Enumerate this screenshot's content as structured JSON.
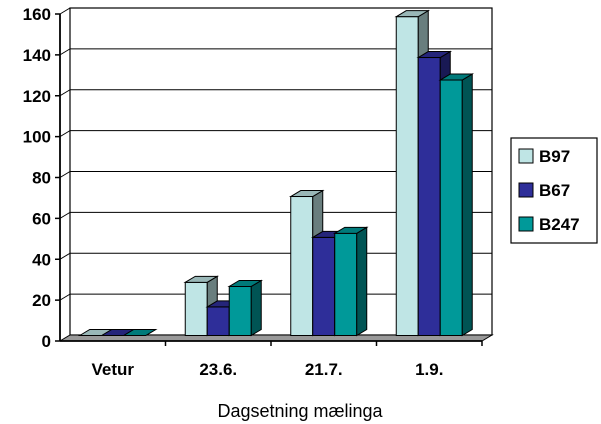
{
  "chart_data": {
    "type": "bar",
    "title": "",
    "xlabel": "Dagsetning mælinga",
    "ylabel": "",
    "ylim": [
      0,
      160
    ],
    "yticks": [
      "0",
      "20",
      "40",
      "60",
      "80",
      "100",
      "120",
      "140",
      "160"
    ],
    "categories": [
      "Vetur",
      "23.6.",
      "21.7.",
      "1.9."
    ],
    "series": [
      {
        "name": "B97",
        "values": [
          0,
          26,
          68,
          156
        ],
        "color": "#BFE5E5"
      },
      {
        "name": "B67",
        "values": [
          0,
          14,
          48,
          136
        ],
        "color": "#2E2E99"
      },
      {
        "name": "B247",
        "values": [
          0,
          24,
          50,
          125
        ],
        "color": "#009999"
      }
    ],
    "grid": true,
    "three_d": true,
    "legend_position": "right"
  }
}
